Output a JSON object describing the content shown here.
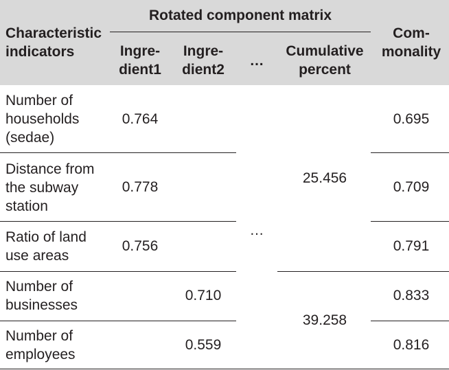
{
  "table": {
    "header": {
      "characteristic": "Characteristic\nindicators",
      "group": "Rotated component matrix",
      "ingredient1": "Ingre-\ndient1",
      "ingredient2": "Ingre-\ndient2",
      "ellipsis": "…",
      "cumulative": "Cumulative\npercent",
      "commonality": "Com-\nmonality"
    },
    "rows": [
      {
        "indicator": "Number of\nhouseholds\n(sedae)",
        "ingredient1": "0.764",
        "ingredient2": "",
        "commonality": "0.695"
      },
      {
        "indicator": "Distance from\nthe subway\nstation",
        "ingredient1": "0.778",
        "ingredient2": "",
        "commonality": "0.709"
      },
      {
        "indicator": "Ratio of land\nuse areas",
        "ingredient1": "0.756",
        "ingredient2": "",
        "commonality": "0.791"
      },
      {
        "indicator": "Number of\nbusinesses",
        "ingredient1": "",
        "ingredient2": "0.710",
        "commonality": "0.833"
      },
      {
        "indicator": "Number of\nemployees",
        "ingredient1": "",
        "ingredient2": "0.559",
        "commonality": "0.816"
      }
    ],
    "merged": {
      "ellipsis": "…",
      "cumulative_group1": "25.456",
      "cumulative_group2": "39.258"
    }
  }
}
